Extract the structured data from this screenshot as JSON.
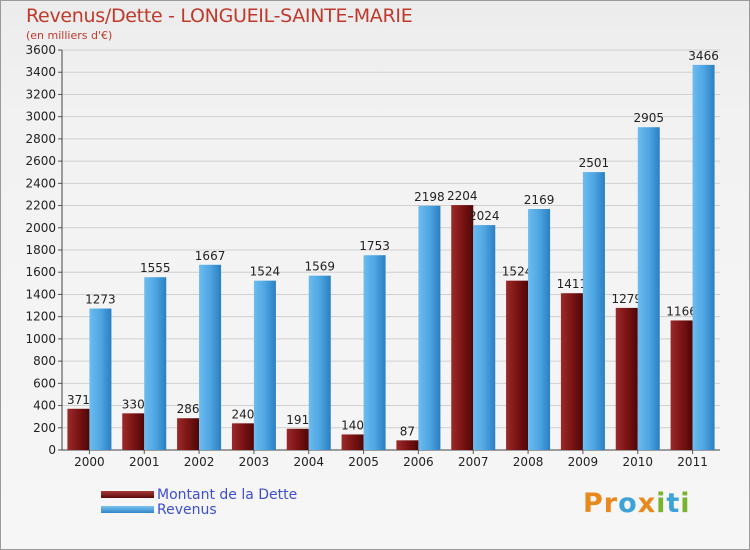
{
  "title": "Revenus/Dette - LONGUEIL-SAINTE-MARIE",
  "subtitle": "(en milliers d'€)",
  "logo": {
    "text": "Proxiti",
    "letters": [
      {
        "ch": "P",
        "color": "#e8891e"
      },
      {
        "ch": "r",
        "color": "#e8891e"
      },
      {
        "ch": "o",
        "color": "#3da3d6"
      },
      {
        "ch": "x",
        "color": "#e8891e"
      },
      {
        "ch": "i",
        "color": "#7ab32e"
      },
      {
        "ch": "t",
        "color": "#3da3d6"
      },
      {
        "ch": "i",
        "color": "#7ab32e"
      }
    ]
  },
  "chart_data": {
    "type": "bar",
    "categories": [
      "2000",
      "2001",
      "2002",
      "2003",
      "2004",
      "2005",
      "2006",
      "2007",
      "2008",
      "2009",
      "2010",
      "2011"
    ],
    "series": [
      {
        "name": "Montant de la Dette",
        "color": "#7b1414",
        "values": [
          371,
          330,
          286,
          240,
          191,
          140,
          87,
          2204,
          1524,
          1411,
          1279,
          1166
        ]
      },
      {
        "name": "Revenus",
        "color": "#4ea6e2",
        "values": [
          1273,
          1555,
          1667,
          1524,
          1569,
          1753,
          2198,
          2024,
          2169,
          2501,
          2905,
          3466
        ]
      }
    ],
    "ylim": [
      0,
      3600
    ],
    "yticks": [
      0,
      200,
      400,
      600,
      800,
      1000,
      1200,
      1400,
      1600,
      1800,
      2000,
      2200,
      2400,
      2600,
      2800,
      3000,
      3200,
      3400,
      3600
    ],
    "grid": true,
    "legend": "bottom-left",
    "value_labels": [
      [
        "371",
        "330",
        "286",
        "240",
        "191",
        "140",
        "87",
        "2204",
        "1524",
        "1411",
        "1279",
        "1166"
      ],
      [
        "1273",
        "1555",
        "1667",
        "1524",
        "1569",
        "1753",
        "2198",
        "2024",
        "2169",
        "2501",
        "2905",
        "3466"
      ]
    ]
  }
}
